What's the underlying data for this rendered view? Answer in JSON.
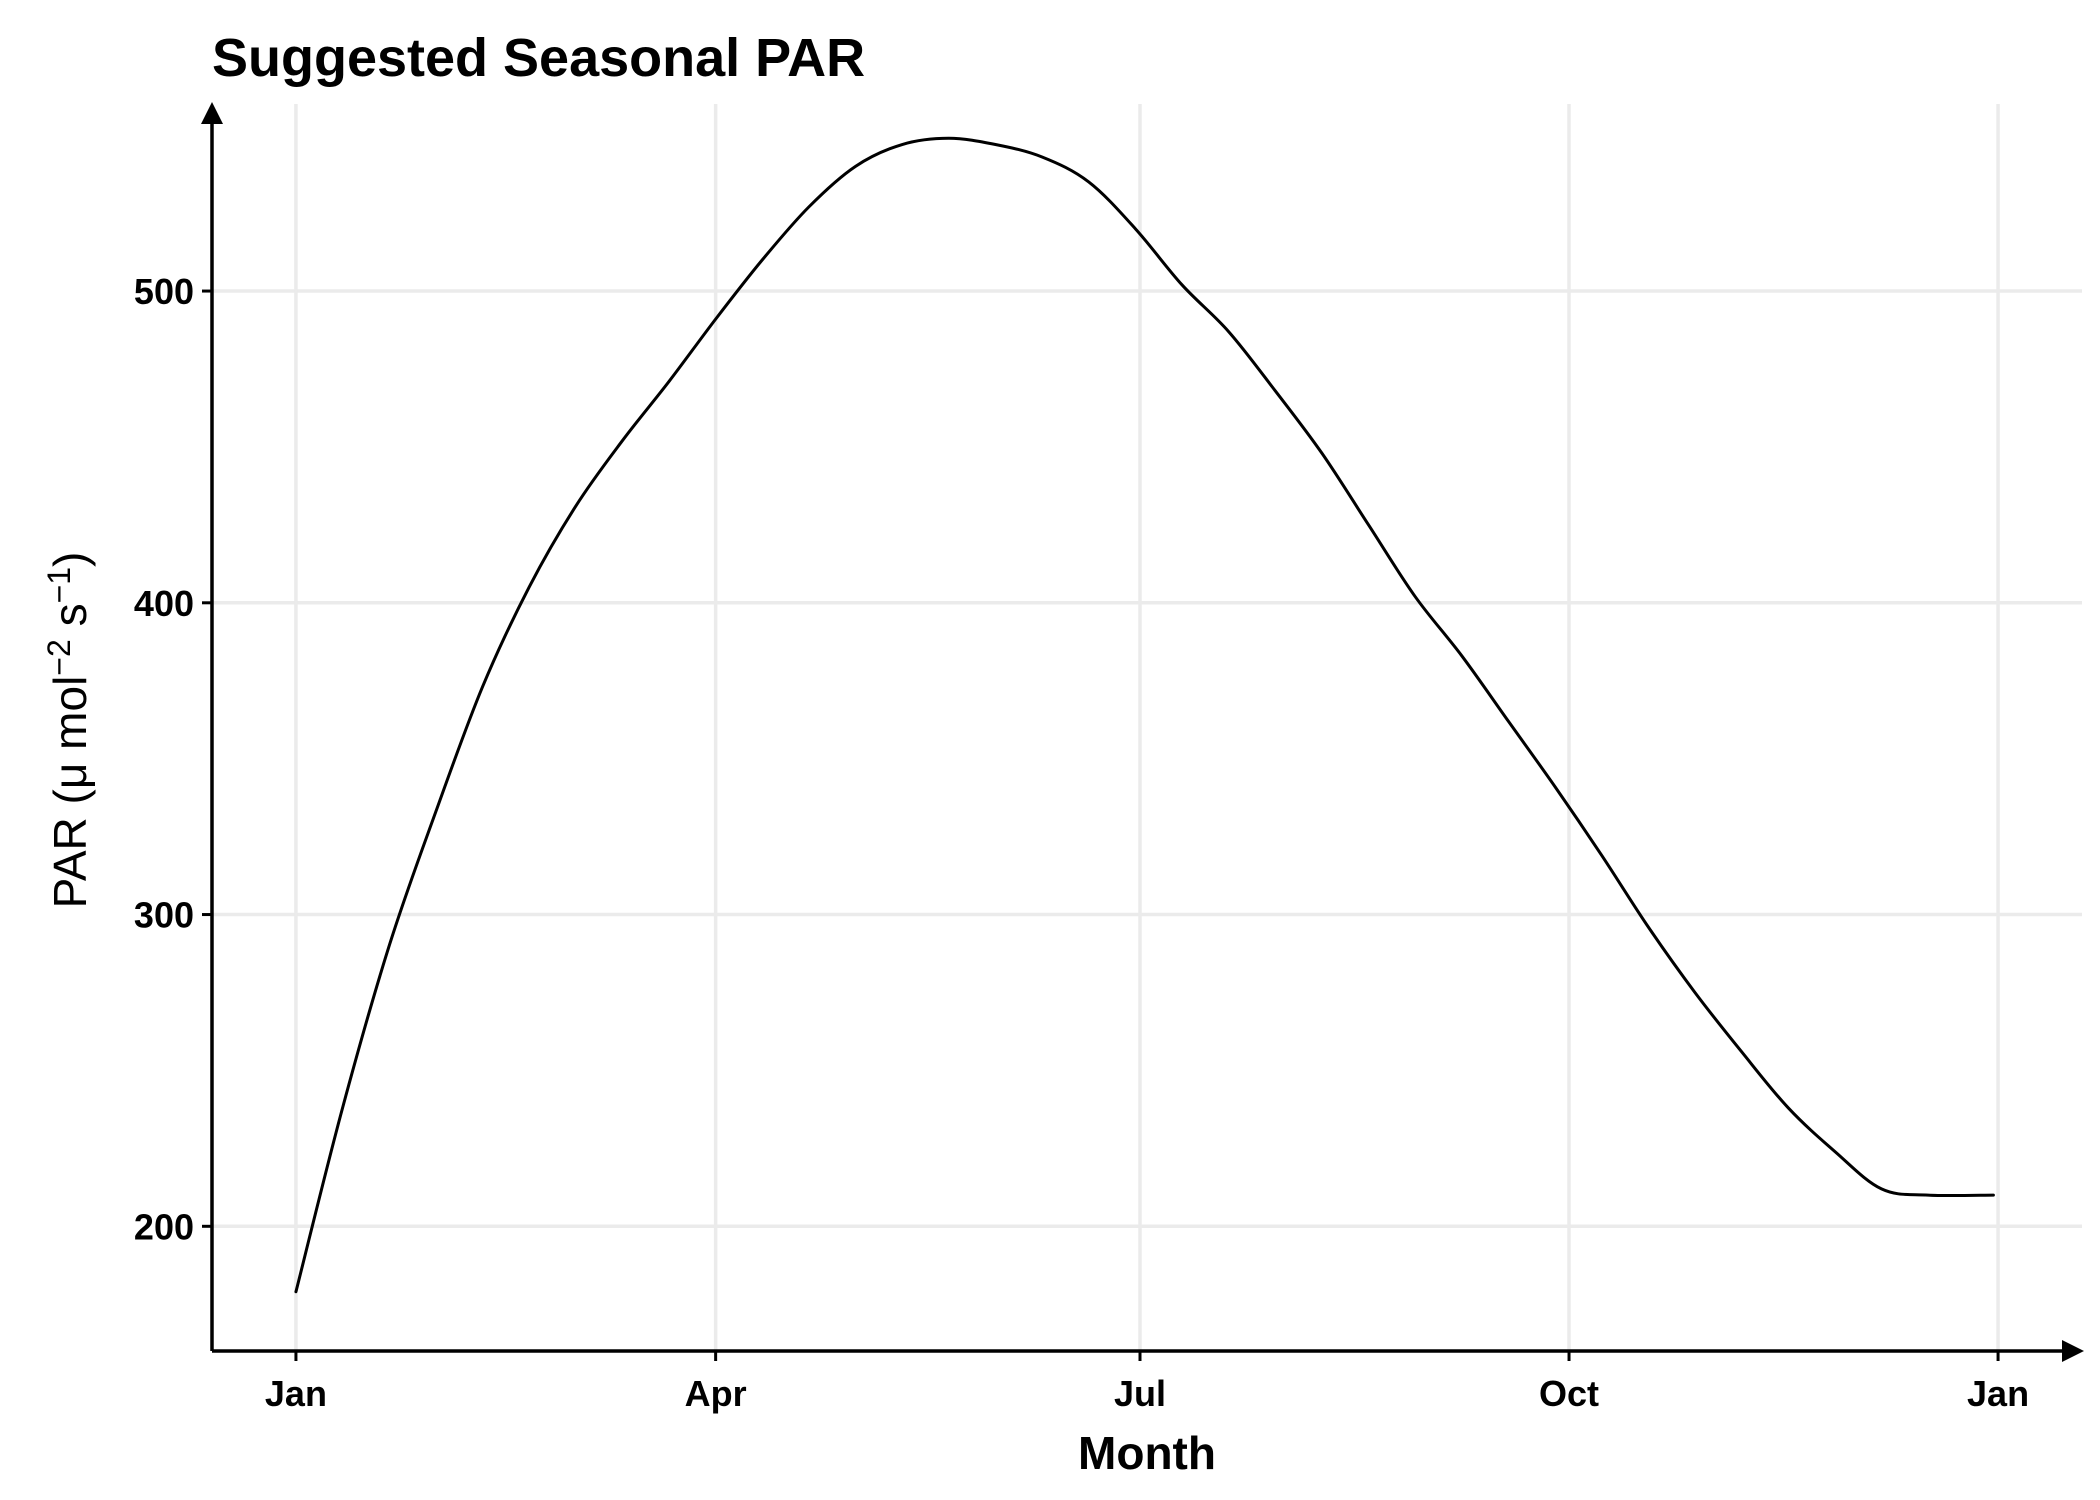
{
  "chart_data": {
    "type": "line",
    "title": "Suggested Seasonal PAR",
    "xlabel": "Month",
    "ylabel": {
      "prefix": "PAR (",
      "mu": "μ",
      "mol": " mol",
      "sup1": "−2",
      "s": " s",
      "sup2": "−1",
      "suffix": ")"
    },
    "x_ticks": [
      "Jan",
      "Apr",
      "Jul",
      "Oct",
      "Jan"
    ],
    "x_tick_days": [
      0,
      90,
      181,
      273,
      365
    ],
    "y_ticks": [
      200,
      300,
      400,
      500
    ],
    "xlim": [
      -18,
      383
    ],
    "ylim": [
      160,
      560
    ],
    "grid": true,
    "legend": "none",
    "colors": {
      "line": "#000000",
      "grid": "#ebebeb",
      "axis": "#000000"
    },
    "series": [
      {
        "x": [
          0,
          10,
          20,
          30,
          40,
          50,
          60,
          70,
          80,
          90,
          100,
          110,
          120,
          130,
          140,
          150,
          160,
          170,
          180,
          190,
          200,
          210,
          220,
          230,
          240,
          250,
          260,
          270,
          280,
          290,
          300,
          310,
          320,
          330,
          340,
          350,
          364
        ],
        "y": [
          179,
          238,
          290,
          333,
          373,
          405,
          431,
          452,
          471,
          491,
          510,
          527,
          540,
          547,
          549,
          547,
          543,
          535,
          520,
          502,
          487,
          468,
          448,
          425,
          402,
          383,
          362,
          341,
          319,
          296,
          275,
          256,
          238,
          224,
          212,
          210,
          210
        ]
      }
    ]
  }
}
